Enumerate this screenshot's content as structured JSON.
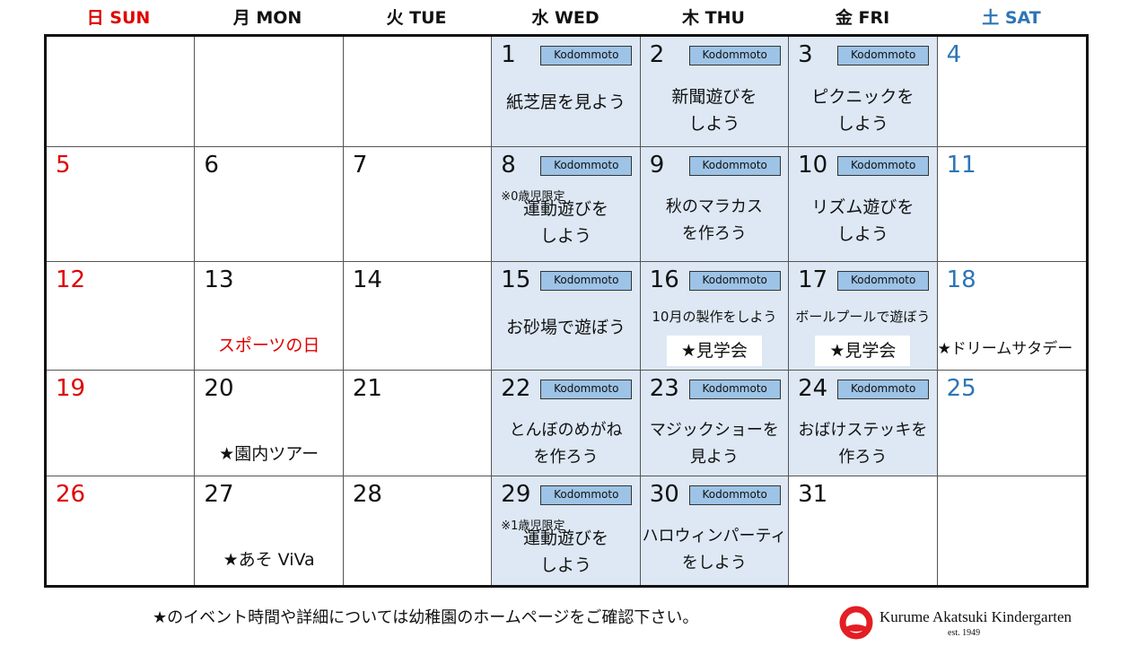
{
  "headers": [
    {
      "label": "日 SUN",
      "color": "#e00000"
    },
    {
      "label": "月 MON",
      "color": "#111111"
    },
    {
      "label": "火 TUE",
      "color": "#111111"
    },
    {
      "label": "水 WED",
      "color": "#111111"
    },
    {
      "label": "木 THU",
      "color": "#111111"
    },
    {
      "label": "金 FRI",
      "color": "#111111"
    },
    {
      "label": "土 SAT",
      "color": "#2e75b6"
    }
  ],
  "colors": {
    "sunday": "#e00000",
    "saturday": "#2e75b6",
    "highlight": "#dde8f4",
    "badge": "#9dc3e6"
  },
  "badge_label": "Kodommoto",
  "weeks": [
    [
      {},
      {},
      {},
      {
        "day": "1",
        "hl": true,
        "kodo": true,
        "act": "紙芝居を見よう"
      },
      {
        "day": "2",
        "hl": true,
        "kodo": true,
        "act": "新聞遊びを\nしよう"
      },
      {
        "day": "3",
        "hl": true,
        "kodo": true,
        "act": "ピクニックを\nしよう"
      },
      {
        "day": "4"
      }
    ],
    [
      {
        "day": "5"
      },
      {
        "day": "6"
      },
      {
        "day": "7"
      },
      {
        "day": "8",
        "hl": true,
        "kodo": true,
        "note": "※0歳児限定",
        "act": "運動遊びを\nしよう"
      },
      {
        "day": "9",
        "hl": true,
        "kodo": true,
        "act": "秋のマラカス\nを作ろう"
      },
      {
        "day": "10",
        "hl": true,
        "kodo": true,
        "act": "リズム遊びを\nしよう"
      },
      {
        "day": "11"
      }
    ],
    [
      {
        "day": "12"
      },
      {
        "day": "13",
        "event": "スポーツの日",
        "eventRed": true
      },
      {
        "day": "14"
      },
      {
        "day": "15",
        "hl": true,
        "kodo": true,
        "act": "お砂場で遊ぼう",
        "small": false
      },
      {
        "day": "16",
        "hl": true,
        "kodo": true,
        "act": "10月の製作をしよう",
        "small": true,
        "event": "★見学会",
        "box": true
      },
      {
        "day": "17",
        "hl": true,
        "kodo": true,
        "act": "ボールプールで遊ぼう",
        "small": true,
        "event": "★見学会",
        "box": true
      },
      {
        "day": "18",
        "event": "★ドリームサタデー"
      }
    ],
    [
      {
        "day": "19"
      },
      {
        "day": "20",
        "event": "★園内ツアー"
      },
      {
        "day": "21"
      },
      {
        "day": "22",
        "hl": true,
        "kodo": true,
        "act": "とんぼのめがね\nを作ろう"
      },
      {
        "day": "23",
        "hl": true,
        "kodo": true,
        "act": "マジックショーを\n見よう"
      },
      {
        "day": "24",
        "hl": true,
        "kodo": true,
        "act": "おばけステッキを\n作ろう"
      },
      {
        "day": "25"
      }
    ],
    [
      {
        "day": "26"
      },
      {
        "day": "27",
        "event": "★あそ ViVa"
      },
      {
        "day": "28"
      },
      {
        "day": "29",
        "hl": true,
        "kodo": true,
        "note": "※1歳児限定",
        "act": "運動遊びを\nしよう"
      },
      {
        "day": "30",
        "hl": true,
        "kodo": true,
        "act": "ハロウィンパーティ\nをしよう"
      },
      {
        "day": "31"
      },
      {}
    ]
  ],
  "footer": "★のイベント時間や詳細については幼稚園のホームページをご確認下さい。",
  "logo": {
    "name": "Kurume Akatsuki Kindergarten",
    "est": "est. 1949",
    "color": "#e31e24"
  }
}
